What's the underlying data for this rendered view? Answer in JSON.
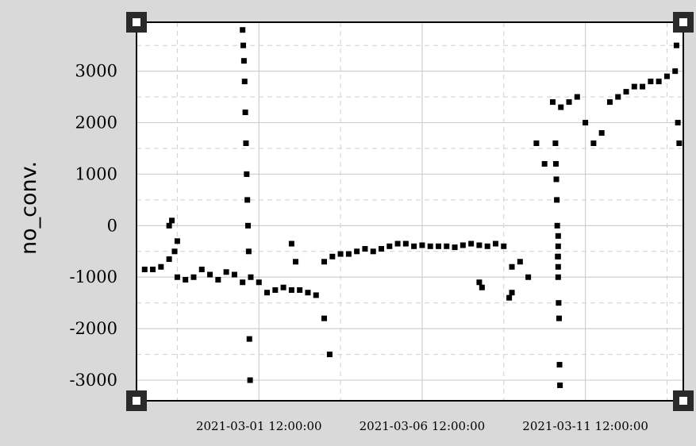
{
  "chart_data": {
    "type": "scatter",
    "title": "",
    "xlabel": "",
    "ylabel": "no_conv.",
    "x_tick_labels": [
      "2021-03-01 12:00:00",
      "2021-03-06 12:00:00",
      "2021-03-11 12:00:00"
    ],
    "y_tick_labels": [
      "-3000",
      "-2000",
      "-1000",
      "0",
      "1000",
      "2000",
      "3000"
    ],
    "xlim": [
      "2021-02-25 18:00",
      "2021-03-14 12:00"
    ],
    "ylim": [
      -3400,
      3950
    ],
    "grid": true,
    "marker_color": "#000000",
    "series": [
      {
        "x": [
          "2021-02-26 00:00",
          "2021-02-26 06:00",
          "2021-02-26 12:00",
          "2021-02-26 18:00",
          "2021-02-27 00:00",
          "2021-02-27 06:00",
          "2021-02-27 12:00",
          "2021-02-27 18:00",
          "2021-02-28 00:00",
          "2021-02-28 06:00",
          "2021-02-28 12:00",
          "2021-02-28 18:00",
          "2021-03-01 00:00",
          "2021-03-01 06:00",
          "2021-03-01 12:00",
          "2021-03-01 18:00",
          "2021-03-02 00:00",
          "2021-03-02 06:00",
          "2021-03-02 12:00",
          "2021-03-02 18:00",
          "2021-03-03 00:00",
          "2021-03-03 06:00",
          "2021-03-03 12:00",
          "2021-03-03 18:00",
          "2021-03-04 00:00",
          "2021-03-04 06:00",
          "2021-03-04 12:00",
          "2021-03-04 18:00",
          "2021-03-05 00:00",
          "2021-03-05 06:00",
          "2021-03-05 12:00",
          "2021-03-05 18:00",
          "2021-03-06 00:00",
          "2021-03-06 06:00",
          "2021-03-06 12:00",
          "2021-03-06 18:00",
          "2021-03-07 00:00",
          "2021-03-07 06:00",
          "2021-03-07 12:00",
          "2021-03-07 18:00",
          "2021-03-08 00:00",
          "2021-03-08 06:00",
          "2021-03-08 12:00",
          "2021-03-08 18:00",
          "2021-03-09 00:00",
          "2021-03-09 06:00",
          "2021-03-09 12:00",
          "2021-03-09 18:00",
          "2021-03-10 00:00",
          "2021-03-10 06:00",
          "2021-03-10 12:00",
          "2021-03-10 18:00",
          "2021-03-11 00:00",
          "2021-03-11 06:00",
          "2021-03-11 12:00",
          "2021-03-11 18:00",
          "2021-03-12 00:00",
          "2021-03-12 06:00",
          "2021-03-12 12:00",
          "2021-03-12 18:00",
          "2021-03-13 00:00",
          "2021-03-13 06:00",
          "2021-03-13 12:00",
          "2021-03-13 18:00",
          "2021-03-14 00:00",
          "2021-02-26 18:00",
          "2021-02-26 20:00",
          "2021-02-26 22:00",
          "2021-02-27 00:00",
          "2021-03-01 00:00",
          "2021-03-01 00:30",
          "2021-03-01 01:00",
          "2021-03-01 01:30",
          "2021-03-01 02:00",
          "2021-03-01 02:30",
          "2021-03-01 03:00",
          "2021-03-01 03:30",
          "2021-03-01 04:00",
          "2021-03-01 04:30",
          "2021-03-01 05:00",
          "2021-03-01 05:30",
          "2021-03-02 12:00",
          "2021-03-02 15:00",
          "2021-03-03 12:00",
          "2021-03-03 16:00",
          "2021-03-08 06:00",
          "2021-03-08 08:00",
          "2021-03-09 04:00",
          "2021-03-09 06:00",
          "2021-03-10 14:00",
          "2021-03-10 14:20",
          "2021-03-10 14:40",
          "2021-03-10 15:00",
          "2021-03-10 15:20",
          "2021-03-10 15:40",
          "2021-03-10 16:00",
          "2021-03-10 16:20",
          "2021-03-10 16:40",
          "2021-03-10 17:00",
          "2021-03-10 17:20",
          "2021-03-10 16:00",
          "2021-03-10 16:00",
          "2021-03-10 16:00",
          "2021-03-10 16:00",
          "2021-03-14 06:00",
          "2021-03-14 07:00",
          "2021-03-14 08:00",
          "2021-03-14 09:00"
        ],
        "y": [
          -850,
          -850,
          -800,
          -650,
          -1000,
          -1050,
          -1000,
          -850,
          -950,
          -1050,
          -900,
          -950,
          -1100,
          -1000,
          -1100,
          -1300,
          -1250,
          -1200,
          -1250,
          -1250,
          -1300,
          -1350,
          -700,
          -600,
          -550,
          -550,
          -500,
          -450,
          -500,
          -450,
          -400,
          -350,
          -350,
          -400,
          -380,
          -400,
          -400,
          -400,
          -420,
          -380,
          -350,
          -380,
          -400,
          -350,
          -400,
          -800,
          -700,
          -1000,
          1600,
          1200,
          2400,
          2300,
          2400,
          2500,
          2000,
          1600,
          1800,
          2400,
          2500,
          2600,
          2700,
          2700,
          2800,
          2800,
          2900,
          0,
          100,
          -500,
          -300,
          3800,
          3500,
          3200,
          2800,
          2200,
          1600,
          1000,
          500,
          0,
          -500,
          -2200,
          -3000,
          -350,
          -700,
          -1800,
          -2500,
          -1100,
          -1200,
          -1400,
          -1300,
          1600,
          1200,
          900,
          500,
          0,
          -600,
          -1000,
          -1500,
          -1800,
          -2700,
          -3100,
          -200,
          -400,
          -600,
          -800,
          3000,
          3500,
          2000,
          1600
        ]
      }
    ]
  }
}
